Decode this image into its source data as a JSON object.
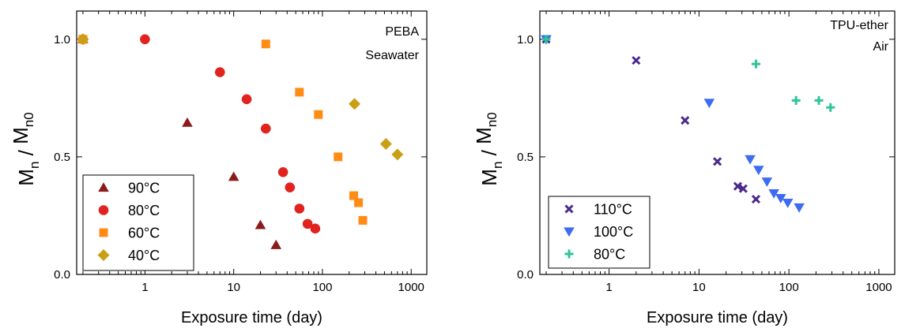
{
  "chart_data": [
    {
      "type": "scatter",
      "title": "",
      "annotations": [
        "PEBA",
        "Seawater"
      ],
      "xlabel": "Exposure time (day)",
      "ylabel": {
        "main": "M",
        "sub1": "n",
        "slash": " / ",
        "main2": "M",
        "sub2": "n0"
      },
      "xscale": "log",
      "xlim": [
        0.17,
        1500
      ],
      "ylim": [
        0,
        1.12
      ],
      "xticks": [
        {
          "v": 1,
          "label": "1"
        },
        {
          "v": 10,
          "label": "10"
        },
        {
          "v": 100,
          "label": "100"
        },
        {
          "v": 1000,
          "label": "1000"
        }
      ],
      "yticks": [
        {
          "v": 0,
          "label": "0.0"
        },
        {
          "v": 0.5,
          "label": "0.5"
        },
        {
          "v": 1.0,
          "label": "1.0"
        }
      ],
      "legend_position": "bottom-left",
      "series": [
        {
          "name": "90°C",
          "marker": "triangle",
          "color": "#8b1a1a",
          "points": [
            [
              0.2,
              1.0
            ],
            [
              3,
              0.645
            ],
            [
              10,
              0.415
            ],
            [
              20,
              0.21
            ],
            [
              30,
              0.125
            ]
          ]
        },
        {
          "name": "80°C",
          "marker": "circle",
          "color": "#e0231f",
          "points": [
            [
              0.2,
              1.0
            ],
            [
              1,
              1.0
            ],
            [
              7,
              0.86
            ],
            [
              14,
              0.745
            ],
            [
              23,
              0.62
            ],
            [
              36,
              0.435
            ],
            [
              43,
              0.37
            ],
            [
              55,
              0.28
            ],
            [
              68,
              0.215
            ],
            [
              83,
              0.195
            ]
          ]
        },
        {
          "name": "60°C",
          "marker": "square",
          "color": "#ff8c14",
          "points": [
            [
              0.2,
              1.0
            ],
            [
              23,
              0.98
            ],
            [
              55,
              0.775
            ],
            [
              90,
              0.68
            ],
            [
              150,
              0.5
            ],
            [
              225,
              0.335
            ],
            [
              255,
              0.305
            ],
            [
              285,
              0.23
            ]
          ]
        },
        {
          "name": "40°C",
          "marker": "diamond",
          "color": "#c9a014",
          "points": [
            [
              0.2,
              1.0
            ],
            [
              230,
              0.725
            ],
            [
              520,
              0.555
            ],
            [
              700,
              0.51
            ]
          ]
        }
      ]
    },
    {
      "type": "scatter",
      "title": "",
      "annotations": [
        "TPU-ether",
        "Air"
      ],
      "xlabel": "Exposure time (day)",
      "ylabel": {
        "main": "M",
        "sub1": "n",
        "slash": " / ",
        "main2": "M",
        "sub2": "n0"
      },
      "xscale": "log",
      "xlim": [
        0.17,
        1500
      ],
      "ylim": [
        0,
        1.12
      ],
      "xticks": [
        {
          "v": 1,
          "label": "1"
        },
        {
          "v": 10,
          "label": "10"
        },
        {
          "v": 100,
          "label": "100"
        },
        {
          "v": 1000,
          "label": "1000"
        }
      ],
      "yticks": [
        {
          "v": 0,
          "label": "0.0"
        },
        {
          "v": 0.5,
          "label": "0.5"
        },
        {
          "v": 1.0,
          "label": "1.0"
        }
      ],
      "legend_position": "bottom-left",
      "series": [
        {
          "name": "110°C",
          "marker": "x",
          "color": "#4b2a8c",
          "points": [
            [
              0.2,
              1.0
            ],
            [
              2,
              0.91
            ],
            [
              7,
              0.655
            ],
            [
              16,
              0.48
            ],
            [
              27,
              0.375
            ],
            [
              31,
              0.365
            ],
            [
              43,
              0.32
            ]
          ]
        },
        {
          "name": "100°C",
          "marker": "triangle-down",
          "color": "#3d6cf0",
          "points": [
            [
              0.2,
              1.0
            ],
            [
              13,
              0.73
            ],
            [
              37,
              0.49
            ],
            [
              46,
              0.445
            ],
            [
              57,
              0.395
            ],
            [
              68,
              0.345
            ],
            [
              81,
              0.325
            ],
            [
              97,
              0.305
            ],
            [
              130,
              0.285
            ]
          ]
        },
        {
          "name": "80°C",
          "marker": "plus",
          "color": "#2ec49a",
          "points": [
            [
              0.2,
              1.0
            ],
            [
              43,
              0.895
            ],
            [
              120,
              0.74
            ],
            [
              215,
              0.74
            ],
            [
              290,
              0.71
            ]
          ]
        }
      ]
    }
  ]
}
